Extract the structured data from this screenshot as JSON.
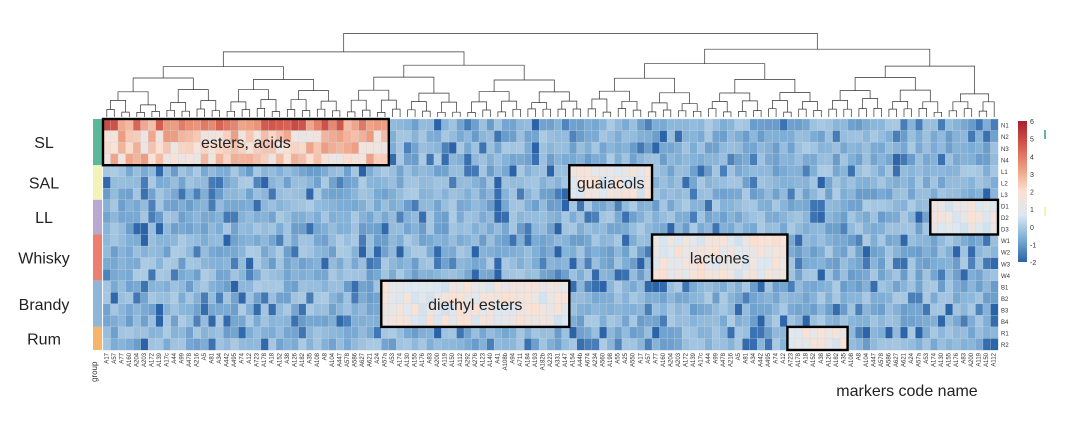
{
  "chart_data": {
    "type": "heatmap",
    "title": "",
    "xlabel": "markers code name",
    "ylabel": "",
    "group_header": "group",
    "groups": [
      {
        "name": "SL",
        "color": "#5bb89a",
        "rows": 4
      },
      {
        "name": "SAL",
        "color": "#f3f2b7",
        "rows": 3
      },
      {
        "name": "LL",
        "color": "#b9a8cf",
        "rows": 3
      },
      {
        "name": "Whisky",
        "color": "#ec7f6f",
        "rows": 4
      },
      {
        "name": "Brandy",
        "color": "#8fb6d9",
        "rows": 4
      },
      {
        "name": "Rum",
        "color": "#f5b66a",
        "rows": 2
      }
    ],
    "row_labels": [
      "N1",
      "N2",
      "N3",
      "N4",
      "L1",
      "L2",
      "L3",
      "D1",
      "D2",
      "D3",
      "W1",
      "W2",
      "W3",
      "W4",
      "B1",
      "B2",
      "B3",
      "B4",
      "R1",
      "R2"
    ],
    "column_count": 119,
    "column_labels_sample": [
      "A17",
      "A57",
      "A77",
      "A160",
      "A204",
      "A203",
      "A172",
      "A139",
      "A17c",
      "A44",
      "A99",
      "A478",
      "A216",
      "A5",
      "A81",
      "A34",
      "A442",
      "A495",
      "A74",
      "A12",
      "A723",
      "A178",
      "A18",
      "A152",
      "A38",
      "A126",
      "A182",
      "A35",
      "A108",
      "A8",
      "A104",
      "A447",
      "A578",
      "A586",
      "A627",
      "A621",
      "A24",
      "A57a",
      "A53",
      "A174",
      "A130",
      "A155",
      "A176",
      "A83",
      "A200",
      "A119",
      "A150",
      "A112",
      "A292",
      "A276",
      "A123",
      "A140",
      "A41",
      "A108b",
      "A94",
      "A711",
      "A184",
      "A193",
      "A182b",
      "A223",
      "A331",
      "A147",
      "A154",
      "A44b",
      "A674",
      "A234",
      "A560",
      "A198",
      "A55",
      "A25",
      "A550"
    ],
    "color_scale": {
      "min": -2,
      "max": 6,
      "ticks": [
        6,
        5,
        4,
        3,
        2,
        1,
        0,
        -1,
        -2
      ],
      "stops": [
        "#2a63a8",
        "#7eaed6",
        "#dbe8f2",
        "#fbe1d3",
        "#ed9c7f",
        "#d3584c",
        "#a81f2f"
      ]
    },
    "legend_side_labels": [
      "N1",
      "N2",
      "N3",
      "N4",
      "L1",
      "L2",
      "L3",
      "D1",
      "D2",
      "D3",
      "W1",
      "W2",
      "W3",
      "W4",
      "B1",
      "B2",
      "B3",
      "B4",
      "R1",
      "R2"
    ],
    "annotations": [
      {
        "label": "esters, acids",
        "rows": [
          0,
          3
        ],
        "cols": [
          0,
          37
        ]
      },
      {
        "label": "guaiacols",
        "rows": [
          4,
          6
        ],
        "cols": [
          62,
          72
        ]
      },
      {
        "label": "lactones",
        "rows": [
          10,
          13
        ],
        "cols": [
          73,
          90
        ]
      },
      {
        "label": "diethyl esters",
        "rows": [
          14,
          17
        ],
        "cols": [
          37,
          61
        ]
      },
      {
        "label": "",
        "rows": [
          7,
          9
        ],
        "cols": [
          110,
          118
        ]
      },
      {
        "label": "",
        "rows": [
          18,
          19
        ],
        "cols": [
          91,
          98
        ]
      }
    ],
    "grid": true,
    "dendrogram": "top"
  }
}
